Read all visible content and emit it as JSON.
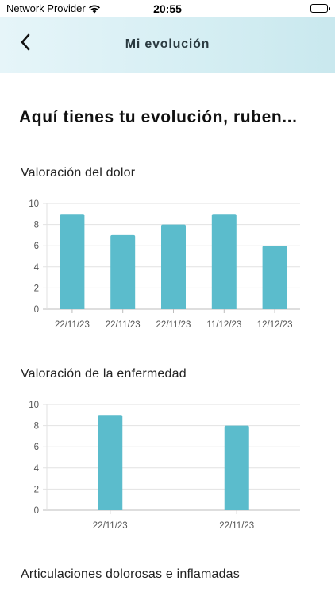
{
  "status_bar": {
    "carrier": "Network Provider",
    "time": "20:55",
    "wifi_icon": "wifi-icon",
    "battery_icon": "battery-icon"
  },
  "nav": {
    "back_icon": "chevron-left-icon",
    "title": "Mi evolución",
    "background_gradient": [
      "#e6f5f9",
      "#c9e8ee"
    ]
  },
  "greeting": "Aquí tienes tu evolución, ruben...",
  "sections": [
    {
      "title": "Valoración del dolor"
    },
    {
      "title": "Valoración de la enfermedad"
    },
    {
      "title": "Articulaciones dolorosas e inflamadas"
    }
  ],
  "colors": {
    "bar": "#5bbccc",
    "grid": "#e2e2e2",
    "axis": "#bdbdbd"
  },
  "chart_data": [
    {
      "type": "bar",
      "title": "Valoración del dolor",
      "categories": [
        "22/11/23",
        "22/11/23",
        "22/11/23",
        "11/12/23",
        "12/12/23"
      ],
      "values": [
        9,
        7,
        8,
        9,
        6
      ],
      "xlabel": "",
      "ylabel": "",
      "ylim": [
        0,
        10
      ],
      "yticks": [
        0,
        2,
        4,
        6,
        8,
        10
      ],
      "grid": true,
      "legend": "none"
    },
    {
      "type": "bar",
      "title": "Valoración de la enfermedad",
      "categories": [
        "22/11/23",
        "22/11/23"
      ],
      "values": [
        9,
        8
      ],
      "xlabel": "",
      "ylabel": "",
      "ylim": [
        0,
        10
      ],
      "yticks": [
        0,
        2,
        4,
        6,
        8,
        10
      ],
      "grid": true,
      "legend": "none"
    }
  ]
}
